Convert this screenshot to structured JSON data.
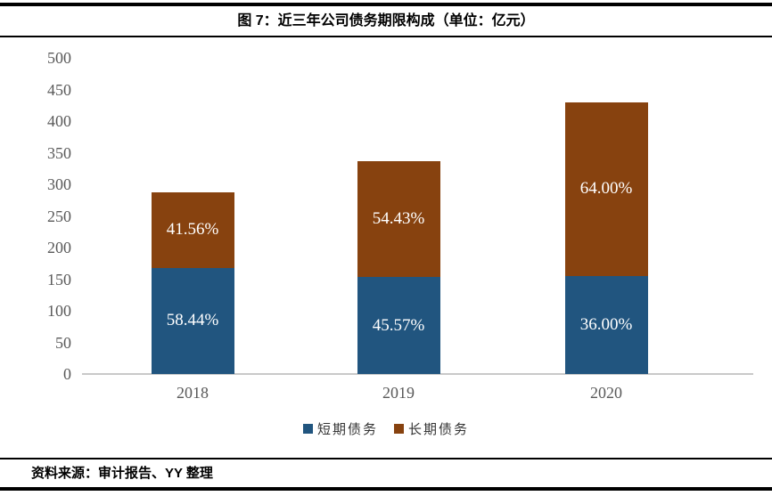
{
  "header": {
    "title": "图 7：近三年公司债务期限构成（单位：亿元）"
  },
  "footer": {
    "source": "资料来源：审计报告、YY 整理"
  },
  "chart_data": {
    "type": "bar",
    "stacked": true,
    "title": "图 7：近三年公司债务期限构成（单位：亿元）",
    "unit": "亿元",
    "categories": [
      "2018",
      "2019",
      "2020"
    ],
    "series": [
      {
        "name": "短期债务",
        "color": "#21557F",
        "values": [
          168,
          153,
          155
        ],
        "percent_labels": [
          "58.44%",
          "45.57%",
          "36.00%"
        ]
      },
      {
        "name": "长期债务",
        "color": "#87420F",
        "values": [
          119,
          184,
          275
        ],
        "percent_labels": [
          "41.56%",
          "54.43%",
          "64.00%"
        ]
      }
    ],
    "totals": [
      287,
      337,
      430
    ],
    "ylim": [
      0,
      500
    ],
    "yticks": [
      0,
      50,
      100,
      150,
      200,
      250,
      300,
      350,
      400,
      450,
      500
    ],
    "xlabel": "",
    "ylabel": "",
    "grid": false,
    "legend_position": "bottom",
    "colors": {
      "axis_text": "#595959",
      "baseline": "#c9c9c9",
      "bar_label_text": "#ffffff"
    }
  }
}
